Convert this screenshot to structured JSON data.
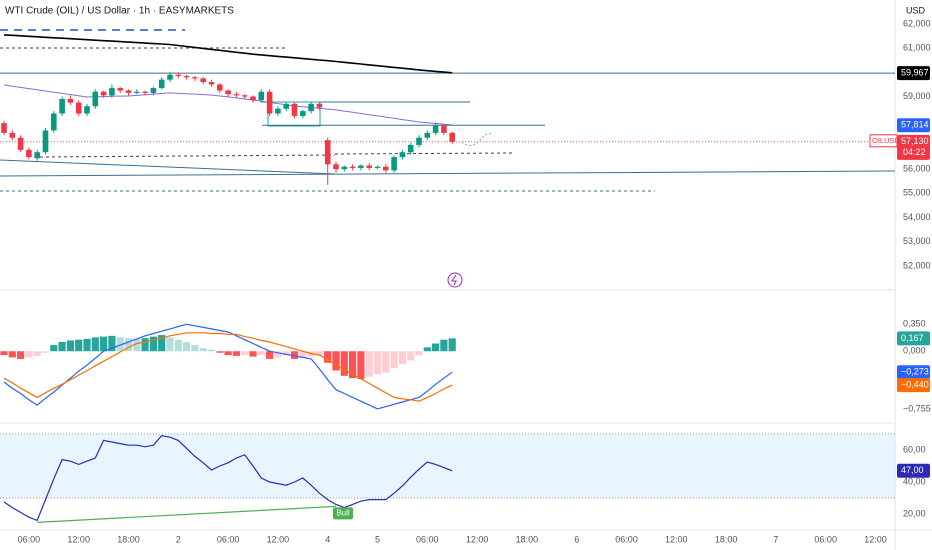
{
  "header": {
    "title": "WTI Crude (OIL) / US Dollar · 1h · EASYMARKETS",
    "currency": "USD"
  },
  "chart_data": [
    {
      "type": "candlestick",
      "categories": [
        null,
        null,
        null,
        "06:00",
        null,
        null,
        null,
        null,
        null,
        "12:00",
        null,
        null,
        null,
        null,
        null,
        "18:00",
        null,
        null,
        null,
        null,
        null,
        "2",
        null,
        null,
        null,
        null,
        null,
        "06:00",
        null,
        null,
        null,
        null,
        null,
        "12:00",
        null,
        null,
        null,
        null,
        null,
        "4",
        null,
        null,
        null,
        null,
        null,
        "5",
        null,
        null,
        null,
        null,
        null,
        "06:00",
        null,
        null,
        null
      ],
      "future_categories": [
        null,
        null,
        "12:00",
        null,
        null,
        null,
        null,
        null,
        "18:00",
        null,
        null,
        null,
        null,
        null,
        "6",
        null,
        null,
        null,
        null,
        null,
        "06:00",
        null,
        null,
        null,
        null,
        null,
        "12:00",
        null,
        null,
        null,
        null,
        null,
        "18:00",
        null,
        null,
        null,
        null,
        null,
        "7",
        null,
        null,
        null,
        null,
        null,
        "06:00",
        null,
        null,
        null,
        null,
        null,
        "12:00"
      ],
      "open": [
        57900,
        57500,
        57300,
        56800,
        56450,
        56700,
        57600,
        58300,
        58900,
        58750,
        58300,
        58600,
        59200,
        59050,
        59350,
        59250,
        59150,
        59200,
        59150,
        59350,
        59700,
        59900,
        59850,
        59800,
        59750,
        59600,
        59500,
        59250,
        59100,
        59050,
        59000,
        58850,
        59200,
        58300,
        58500,
        58700,
        58200,
        58400,
        58700,
        57200,
        56200,
        56000,
        56100,
        56050,
        56150,
        56050,
        56100,
        55950,
        56500,
        56700,
        57000,
        57300,
        57500,
        57800,
        57500
      ],
      "high": [
        58000,
        57600,
        57400,
        56900,
        56800,
        57700,
        58400,
        59000,
        59050,
        58850,
        58700,
        59300,
        59250,
        59500,
        59400,
        59300,
        59300,
        59250,
        59400,
        59800,
        60000,
        60000,
        59900,
        59850,
        59800,
        59700,
        59550,
        59300,
        59200,
        59100,
        59050,
        59300,
        59300,
        58600,
        58800,
        58750,
        58450,
        58800,
        58750,
        57300,
        56300,
        56150,
        56200,
        56200,
        56250,
        56150,
        56200,
        56550,
        56800,
        57100,
        57400,
        57600,
        57900,
        57850,
        57550
      ],
      "low": [
        57400,
        57200,
        56700,
        56400,
        56350,
        56600,
        57500,
        58200,
        58650,
        58200,
        58200,
        58500,
        58950,
        58950,
        59150,
        59050,
        59100,
        59050,
        59050,
        59300,
        59600,
        59750,
        59700,
        59650,
        59500,
        59400,
        59150,
        59000,
        58950,
        58900,
        58750,
        58750,
        58200,
        58200,
        58400,
        58100,
        58100,
        58300,
        58450,
        55350,
        55850,
        55900,
        55950,
        55950,
        55950,
        56000,
        55850,
        55850,
        56400,
        56600,
        56900,
        57200,
        57400,
        57400,
        57050
      ],
      "close": [
        57500,
        57300,
        56800,
        56500,
        56700,
        57600,
        58300,
        58900,
        58750,
        58300,
        58600,
        59200,
        59050,
        59350,
        59250,
        59150,
        59200,
        59150,
        59350,
        59700,
        59900,
        59850,
        59800,
        59750,
        59600,
        59500,
        59250,
        59100,
        59050,
        59000,
        58850,
        59200,
        58300,
        58500,
        58700,
        58200,
        58400,
        58700,
        58550,
        56200,
        56000,
        56100,
        56050,
        56150,
        56050,
        56100,
        55950,
        56500,
        56700,
        57000,
        57300,
        57500,
        57800,
        57500,
        57130
      ],
      "up_color": "#089981",
      "down_color": "#f23645",
      "lines": [
        {
          "color": "#000000",
          "values": [
            61550,
            61530,
            61510,
            61490,
            61470,
            61450,
            61430,
            61410,
            61390,
            61370,
            61350,
            61330,
            61310,
            61290,
            61270,
            61250,
            61230,
            61210,
            61190,
            61170,
            61150,
            61110,
            61070,
            61030,
            60990,
            60950,
            60910,
            60870,
            60830,
            60790,
            60750,
            60720,
            60690,
            60660,
            60630,
            60600,
            60570,
            60540,
            60510,
            60480,
            60450,
            60415,
            60380,
            60345,
            60310,
            60275,
            60240,
            60205,
            60170,
            60135,
            60100,
            60070,
            60040,
            60010,
            59980
          ]
        },
        {
          "color": "#7e6fd8",
          "values": [
            59480,
            59430,
            59380,
            59330,
            59280,
            59230,
            59180,
            59130,
            59080,
            59030,
            58980,
            58990,
            59000,
            59010,
            59020,
            59025,
            59050,
            59075,
            59100,
            59125,
            59150,
            59130,
            59115,
            59100,
            59080,
            59065,
            59025,
            58985,
            58945,
            58900,
            58860,
            58810,
            58760,
            58710,
            58660,
            58610,
            58580,
            58545,
            58515,
            58480,
            58450,
            58400,
            58350,
            58300,
            58250,
            58200,
            58150,
            58100,
            58050,
            58000,
            57950,
            57920,
            57890,
            57860,
            57830
          ]
        }
      ],
      "ylim": [
        51090,
        62990
      ],
      "yticks": [
        {
          "value": 62000,
          "label": "62,000"
        },
        {
          "value": 61000,
          "label": "61,000"
        },
        {
          "value": 59000,
          "label": "59,000"
        },
        {
          "value": 56000,
          "label": "56,000"
        },
        {
          "value": 55000,
          "label": "55,000"
        },
        {
          "value": 54000,
          "label": "54,000"
        },
        {
          "value": 53000,
          "label": "53,000"
        },
        {
          "value": 52000,
          "label": "52,000"
        }
      ],
      "levels": [
        {
          "value": 59967,
          "label": "59,967",
          "color": "#000000"
        },
        {
          "value": 57814,
          "label": "57,814",
          "color": "#2962ff"
        }
      ],
      "last_price": {
        "symbol": "OILUSD",
        "value": 57130,
        "label": "57,130",
        "countdown": "04:22",
        "color": "#f23645"
      }
    },
    {
      "type": "macd",
      "histogram": [
        -0.05,
        -0.08,
        -0.1,
        -0.08,
        -0.06,
        -0.02,
        0.08,
        0.12,
        0.14,
        0.15,
        0.16,
        0.18,
        0.19,
        0.2,
        0.18,
        0.17,
        0.16,
        0.17,
        0.19,
        0.21,
        0.18,
        0.15,
        0.12,
        0.08,
        0.04,
        0.02,
        -0.02,
        -0.05,
        -0.06,
        -0.05,
        -0.07,
        -0.05,
        -0.1,
        -0.08,
        -0.06,
        -0.1,
        -0.09,
        -0.07,
        -0.05,
        -0.15,
        -0.25,
        -0.32,
        -0.35,
        -0.36,
        -0.33,
        -0.3,
        -0.28,
        -0.22,
        -0.17,
        -0.12,
        -0.05,
        0.05,
        0.1,
        0.15,
        0.167
      ],
      "macd": [
        -0.4,
        -0.48,
        -0.55,
        -0.63,
        -0.7,
        -0.61,
        -0.53,
        -0.44,
        -0.35,
        -0.26,
        -0.18,
        -0.09,
        0.0,
        0.04,
        0.08,
        0.12,
        0.16,
        0.2,
        0.23,
        0.26,
        0.29,
        0.32,
        0.35,
        0.33,
        0.31,
        0.29,
        0.27,
        0.25,
        0.2,
        0.15,
        0.1,
        0.05,
        0.0,
        -0.02,
        -0.04,
        -0.06,
        -0.08,
        -0.1,
        -0.23,
        -0.37,
        -0.5,
        -0.55,
        -0.6,
        -0.65,
        -0.7,
        -0.75,
        -0.72,
        -0.69,
        -0.66,
        -0.63,
        -0.6,
        -0.52,
        -0.43,
        -0.35,
        -0.273
      ],
      "signal": [
        -0.35,
        -0.41,
        -0.48,
        -0.54,
        -0.6,
        -0.54,
        -0.48,
        -0.43,
        -0.37,
        -0.31,
        -0.25,
        -0.19,
        -0.13,
        -0.07,
        -0.01,
        0.05,
        0.1,
        0.12,
        0.15,
        0.17,
        0.2,
        0.22,
        0.24,
        0.24,
        0.24,
        0.23,
        0.23,
        0.22,
        0.22,
        0.19,
        0.17,
        0.14,
        0.12,
        0.09,
        0.06,
        0.03,
        0.0,
        -0.03,
        -0.05,
        -0.11,
        -0.18,
        -0.24,
        -0.3,
        -0.36,
        -0.42,
        -0.48,
        -0.54,
        -0.6,
        -0.62,
        -0.63,
        -0.65,
        -0.6,
        -0.55,
        -0.49,
        -0.44
      ],
      "macd_color": "#2962ff",
      "signal_color": "#ff6d00",
      "hist_colors": [
        "#26a69a",
        "#b2dfdb",
        "#ff5252",
        "#ffcdd2"
      ],
      "ylim": [
        -0.92,
        0.77
      ],
      "yticks": [
        {
          "value": 0.35,
          "label": "0,350"
        },
        {
          "value": 0,
          "label": "0,000"
        },
        {
          "value": -0.755,
          "label": "−0,755"
        }
      ],
      "tags": [
        {
          "value": 0.167,
          "label": "0,167",
          "color": "#26a69a"
        },
        {
          "value": -0.273,
          "label": "−0,273",
          "color": "#2962ff"
        },
        {
          "value": -0.44,
          "label": "−0,440",
          "color": "#ff6d00"
        }
      ]
    },
    {
      "type": "rsi",
      "values": [
        27.5,
        24,
        21,
        18,
        16,
        29,
        42,
        54,
        53,
        51,
        53,
        55,
        66,
        65,
        64,
        63,
        63,
        62,
        63,
        69,
        68,
        66,
        61,
        56,
        52,
        47.5,
        50,
        52,
        55,
        57,
        50,
        42.5,
        40,
        39,
        38,
        40,
        42.5,
        38,
        33,
        29,
        26,
        24,
        26,
        28,
        29,
        29,
        29,
        33,
        37.5,
        43,
        48,
        52.5,
        51,
        49,
        47
      ],
      "color": "#2b2bb8",
      "band": [
        30,
        70
      ],
      "ylim": [
        10,
        75.6
      ],
      "yticks": [
        {
          "value": 60,
          "label": "60,00"
        },
        {
          "value": 40,
          "label": "40,00"
        },
        {
          "value": 20,
          "label": "20,00"
        }
      ],
      "tag": {
        "value": 47,
        "label": "47,00",
        "color": "#2b2bb8"
      },
      "annotation": "Bull"
    }
  ]
}
